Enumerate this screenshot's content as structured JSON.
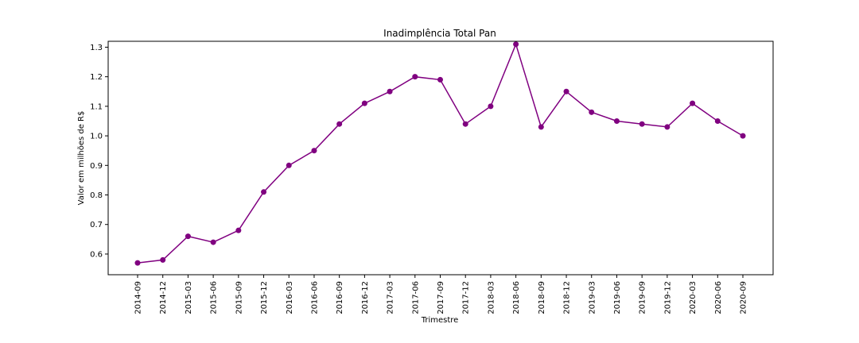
{
  "chart_data": {
    "type": "line",
    "title": "Inadimplência Total Pan",
    "xlabel": "Trimestre",
    "ylabel": "Valor em milhões de R$",
    "categories": [
      "2014-09",
      "2014-12",
      "2015-03",
      "2015-06",
      "2015-09",
      "2015-12",
      "2016-03",
      "2016-06",
      "2016-09",
      "2016-12",
      "2017-03",
      "2017-06",
      "2017-09",
      "2017-12",
      "2018-03",
      "2018-06",
      "2018-09",
      "2018-12",
      "2019-03",
      "2019-06",
      "2019-09",
      "2019-12",
      "2020-03",
      "2020-06",
      "2020-09"
    ],
    "series": [
      {
        "values": [
          0.57,
          0.58,
          0.66,
          0.64,
          0.68,
          0.81,
          0.9,
          0.95,
          1.04,
          1.11,
          1.15,
          1.2,
          1.19,
          1.04,
          1.1,
          1.31,
          1.03,
          1.15,
          1.08,
          1.05,
          1.04,
          1.03,
          1.11,
          1.05,
          1.0
        ],
        "color": "#800080",
        "marker": "circle"
      }
    ],
    "yticks": [
      "0.6",
      "0.7",
      "0.8",
      "0.9",
      "1.0",
      "1.1",
      "1.2",
      "1.3"
    ],
    "ylim": [
      0.53,
      1.32
    ],
    "grid": false,
    "legend": "none"
  }
}
